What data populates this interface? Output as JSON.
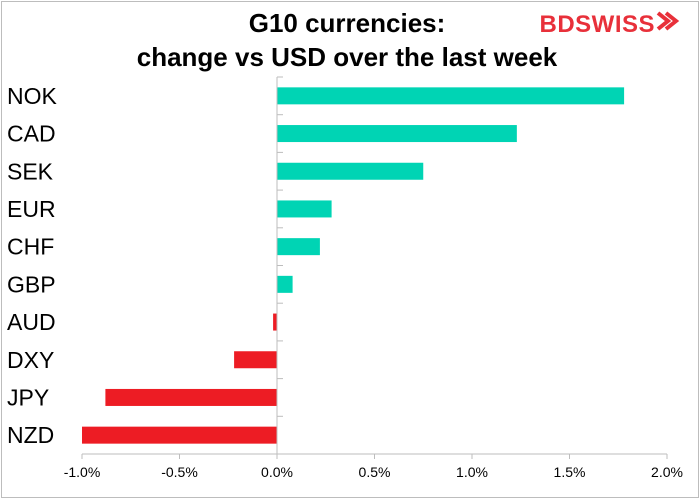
{
  "title_line1": "G10 currencies:",
  "title_line2": "change vs USD over the last week",
  "logo": {
    "part1": "BD",
    "part2": "SWISS"
  },
  "colors": {
    "positive": "#00d4b4",
    "negative": "#ed1c24",
    "axis": "#bdbdbd",
    "text": "#000000"
  },
  "chart_data": {
    "type": "bar",
    "orientation": "horizontal",
    "categories": [
      "NOK",
      "CAD",
      "SEK",
      "EUR",
      "CHF",
      "GBP",
      "AUD",
      "DXY",
      "JPY",
      "NZD"
    ],
    "values": [
      1.78,
      1.23,
      0.75,
      0.28,
      0.22,
      0.08,
      -0.02,
      -0.22,
      -0.88,
      -1.0
    ],
    "xlim": [
      -1.0,
      2.0
    ],
    "xticks": [
      -1.0,
      -0.5,
      0.0,
      0.5,
      1.0,
      1.5,
      2.0
    ],
    "xtick_labels": [
      "-1.0%",
      "-0.5%",
      "0.0%",
      "0.5%",
      "1.0%",
      "1.5%",
      "2.0%"
    ],
    "grid": false
  }
}
